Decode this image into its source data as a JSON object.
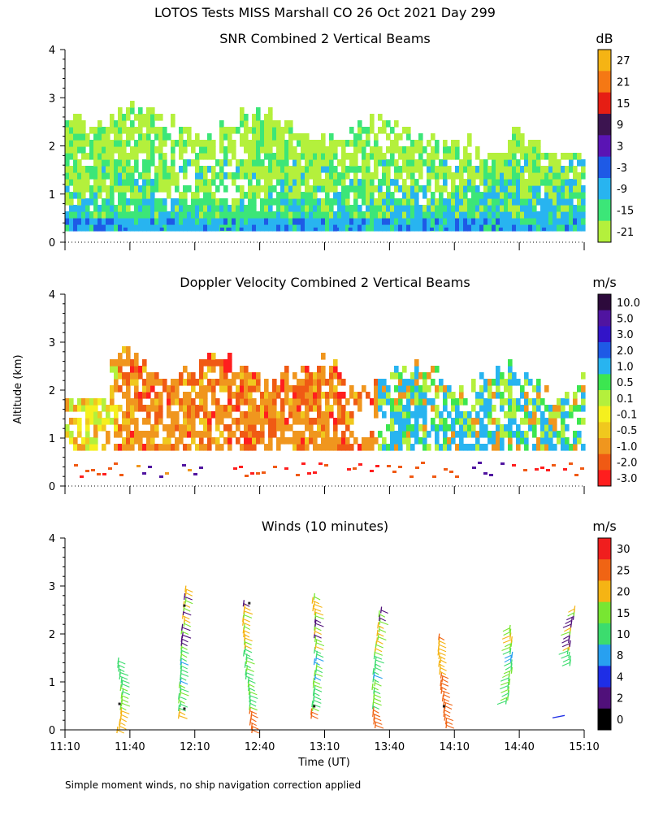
{
  "page_title": "LOTOS Tests MISS Marshall CO  26 Oct 2021 Day 299",
  "footnote": "Simple moment winds, no ship navigation correction applied",
  "shared_y_label": "Altitude (km)",
  "x_label": "Time (UT)",
  "x_ticks": [
    "11:10",
    "11:40",
    "12:10",
    "12:40",
    "13:10",
    "13:40",
    "14:10",
    "14:40",
    "15:10"
  ],
  "colors": {
    "snr": [
      "#b4f03c",
      "#3ce678",
      "#28b4f0",
      "#1e5ae6",
      "#5a14b4",
      "#3c1450",
      "#e61e14",
      "#f57814",
      "#f5b414"
    ],
    "doppler": [
      "#ff1e1e",
      "#f05a14",
      "#f0961e",
      "#f0c81e",
      "#f5f01e",
      "#b4f03c",
      "#3ce650",
      "#28b4f0",
      "#1e5ae6",
      "#3214c8",
      "#5014a0",
      "#2d0a3c"
    ],
    "winds": [
      "#000000",
      "#50107a",
      "#1e2ee6",
      "#28a0f0",
      "#3cdc6e",
      "#78e632",
      "#f5b414",
      "#f06414",
      "#f01e1e"
    ]
  },
  "chart_data": [
    {
      "type": "heatmap",
      "title": "SNR Combined 2 Vertical Beams",
      "xlim": [
        "11:10",
        "15:10"
      ],
      "ylim": [
        0,
        4
      ],
      "y_ticks": [
        "0",
        "1",
        "2",
        "3",
        "4"
      ],
      "colorbar_unit": "dB",
      "colorbar_labels": [
        "-21",
        "-15",
        "-9",
        "-3",
        "3",
        "9",
        "15",
        "21",
        "27"
      ],
      "colorbar_bounds": [
        -21,
        33
      ]
    },
    {
      "type": "heatmap",
      "title": "Doppler Velocity Combined 2 Vertical Beams",
      "xlim": [
        "11:10",
        "15:10"
      ],
      "ylim": [
        0,
        4
      ],
      "y_ticks": [
        "0",
        "1",
        "2",
        "3",
        "4"
      ],
      "colorbar_unit": "m/s",
      "colorbar_labels": [
        "-3.0",
        "-2.0",
        "-1.0",
        "-0.5",
        "-0.1",
        "0.1",
        "0.5",
        "1.0",
        "2.0",
        "3.0",
        "5.0",
        "10.0"
      ]
    },
    {
      "type": "scatter",
      "title": "Winds (10 minutes)",
      "xlim": [
        "11:10",
        "15:10"
      ],
      "ylim": [
        0,
        4
      ],
      "y_ticks": [
        "0",
        "1",
        "2",
        "3",
        "4"
      ],
      "colorbar_unit": "m/s",
      "colorbar_labels": [
        "0",
        "2",
        "4",
        "8",
        "10",
        "15",
        "20",
        "25",
        "30"
      ],
      "profile_times": [
        "11:35",
        "12:05",
        "12:35",
        "13:05",
        "13:35",
        "14:05",
        "14:35",
        "15:05"
      ],
      "profile_tops_km": [
        1.5,
        2.95,
        2.7,
        2.85,
        2.55,
        2.0,
        2.2,
        2.55
      ],
      "profile_bottoms_km": [
        0.0,
        0.3,
        0.0,
        0.3,
        0.1,
        0.1,
        0.6,
        1.4
      ]
    }
  ]
}
